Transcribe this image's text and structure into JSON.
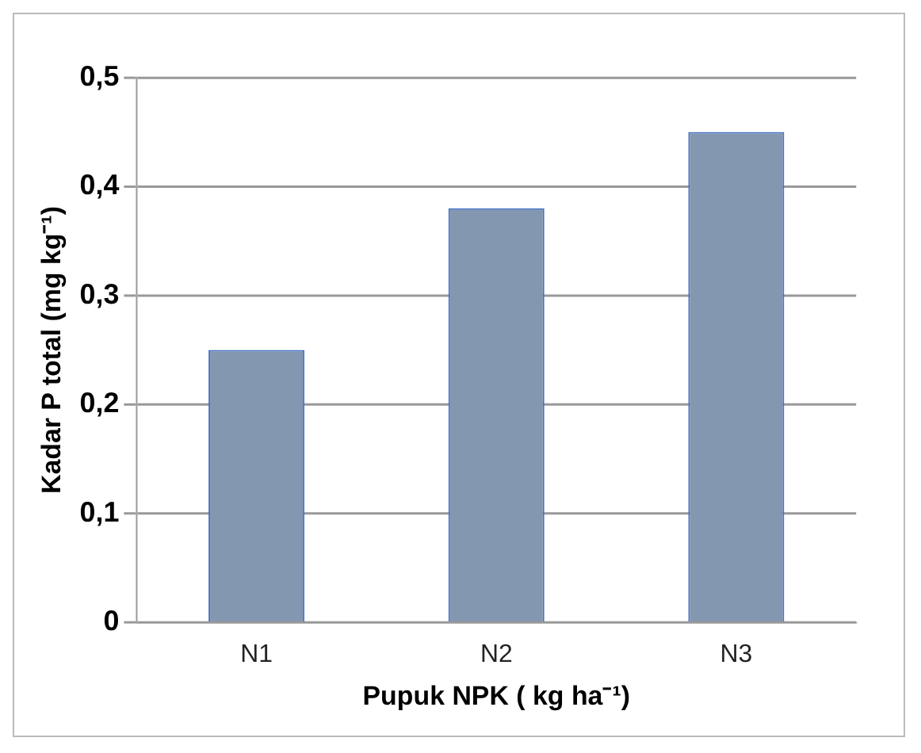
{
  "chart_data": {
    "type": "bar",
    "xlabel": "Pupuk NPK ( kg ha⁻¹)",
    "ylabel": "Kadar P total (mg kg⁻¹)",
    "categories": [
      "N1",
      "N2",
      "N3"
    ],
    "values": [
      0.25,
      0.38,
      0.45
    ],
    "color": "#8497b0",
    "ylim": [
      0,
      0.5
    ],
    "yticks": [
      0,
      {
        "value": 0.1,
        "label": "0,1"
      },
      {
        "value": 0.2,
        "label": "0,2"
      },
      {
        "value": 0.3,
        "label": "0,3"
      },
      {
        "value": 0.4,
        "label": "0,4"
      },
      {
        "value": 0.5,
        "label": "0,5"
      }
    ],
    "grid": "y",
    "legend": false
  }
}
